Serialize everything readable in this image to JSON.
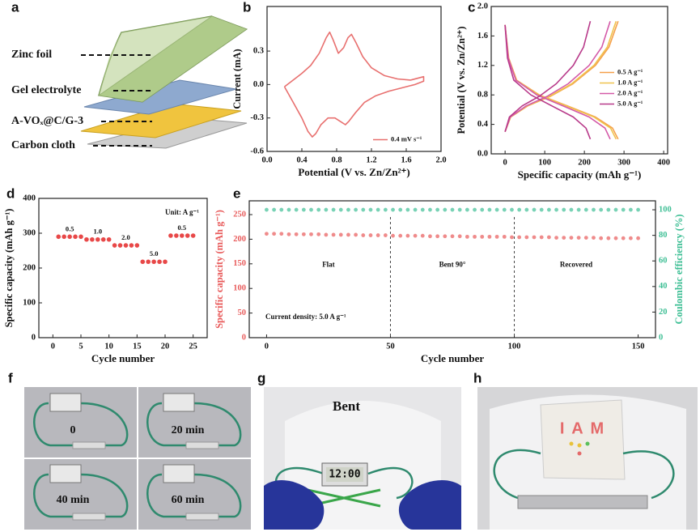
{
  "panel_labels": [
    "a",
    "b",
    "c",
    "d",
    "e",
    "f",
    "g",
    "h"
  ],
  "panel_a": {
    "layers": [
      "Zinc foil",
      "Gel electrolyte",
      "A-VOₓ@C/G-3",
      "Carbon cloth"
    ]
  },
  "chart_data": [
    {
      "type": "line",
      "xlabel": "Potential (V vs. Zn/Zn²⁺)",
      "ylabel": "Current (mA)",
      "xlim": [
        0,
        2.0
      ],
      "xticks": [
        {
          "value": 0,
          "label": "0.0"
        },
        0.4,
        0.8,
        1.2,
        1.6,
        {
          "value": 2.0,
          "label": "2.0"
        }
      ],
      "ylim": [
        -0.6,
        0.7
      ],
      "yticks": [
        -0.6,
        -0.3,
        {
          "value": 0,
          "label": "0.0"
        },
        0.3
      ],
      "legend": "lower right",
      "series": [
        {
          "name": "0.4 mV s⁻¹",
          "color": "#e8706f",
          "x": [
            0.2,
            0.3,
            0.4,
            0.5,
            0.6,
            0.68,
            0.72,
            0.76,
            0.82,
            0.88,
            0.93,
            0.97,
            1.02,
            1.1,
            1.2,
            1.35,
            1.5,
            1.65,
            1.8,
            1.8,
            1.7,
            1.55,
            1.4,
            1.25,
            1.12,
            1.02,
            0.94,
            0.9,
            0.84,
            0.78,
            0.7,
            0.62,
            0.56,
            0.52,
            0.47,
            0.4,
            0.3,
            0.2
          ],
          "values": [
            -0.02,
            0.04,
            0.1,
            0.17,
            0.28,
            0.42,
            0.47,
            0.4,
            0.28,
            0.33,
            0.42,
            0.45,
            0.38,
            0.25,
            0.15,
            0.08,
            0.05,
            0.04,
            0.07,
            0.03,
            0.0,
            -0.03,
            -0.06,
            -0.1,
            -0.16,
            -0.25,
            -0.33,
            -0.36,
            -0.33,
            -0.3,
            -0.3,
            -0.36,
            -0.44,
            -0.47,
            -0.42,
            -0.3,
            -0.16,
            -0.02
          ]
        }
      ]
    },
    {
      "type": "line",
      "xlabel": "Specific capacity (mAh g⁻¹)",
      "ylabel": "Potential (V vs. Zn/Zn²⁺)",
      "xlim": [
        -35,
        410
      ],
      "xticks": [
        0,
        100,
        200,
        300,
        400
      ],
      "ylim": [
        0,
        2.0
      ],
      "yticks": [
        {
          "value": 0,
          "label": "0.0"
        },
        0.4,
        0.8,
        1.2,
        1.6,
        {
          "value": 2.0,
          "label": "2.0"
        }
      ],
      "legend": "center right",
      "series": [
        {
          "name": "0.5 A g⁻¹",
          "color": "#f5a04a",
          "x": [
            0,
            14,
            57,
            114,
            171,
            228,
            262,
            285,
            null,
            0,
            9,
            29,
            86,
            157,
            228,
            271,
            285
          ],
          "values": [
            0.3,
            0.5,
            0.65,
            0.78,
            0.95,
            1.2,
            1.45,
            1.8,
            null,
            1.75,
            1.3,
            1.0,
            0.8,
            0.65,
            0.5,
            0.35,
            0.2
          ]
        },
        {
          "name": "1.0 A g⁻¹",
          "color": "#f0c24e",
          "x": [
            0,
            14,
            56,
            112,
            168,
            224,
            258,
            280,
            null,
            0,
            8,
            28,
            84,
            154,
            224,
            266,
            280
          ],
          "values": [
            0.3,
            0.5,
            0.65,
            0.78,
            0.95,
            1.2,
            1.45,
            1.8,
            null,
            1.75,
            1.3,
            1.0,
            0.8,
            0.65,
            0.5,
            0.35,
            0.2
          ]
        },
        {
          "name": "2.0 A g⁻¹",
          "color": "#d45aa8",
          "x": [
            0,
            13,
            53,
            106,
            159,
            212,
            244,
            265,
            null,
            0,
            8,
            27,
            80,
            146,
            212,
            252,
            265
          ],
          "values": [
            0.3,
            0.5,
            0.65,
            0.78,
            0.95,
            1.2,
            1.45,
            1.8,
            null,
            1.75,
            1.3,
            1.0,
            0.8,
            0.65,
            0.5,
            0.35,
            0.2
          ]
        },
        {
          "name": "5.0 A g⁻¹",
          "color": "#b83a8a",
          "x": [
            0,
            11,
            43,
            86,
            129,
            172,
            198,
            215,
            null,
            0,
            6,
            22,
            65,
            118,
            172,
            204,
            215
          ],
          "values": [
            0.3,
            0.5,
            0.65,
            0.78,
            0.95,
            1.2,
            1.45,
            1.8,
            null,
            1.75,
            1.3,
            1.0,
            0.8,
            0.65,
            0.5,
            0.35,
            0.2
          ]
        }
      ]
    },
    {
      "type": "scatter",
      "xlabel": "Cycle number",
      "ylabel": "Specific capacity (mAh g⁻¹)",
      "xlim": [
        -2.5,
        27.5
      ],
      "xticks": [
        0,
        5,
        10,
        15,
        20,
        25
      ],
      "ylim": [
        0,
        400
      ],
      "yticks": [
        0,
        100,
        200,
        300,
        400
      ],
      "note": "Unit: A g⁻¹",
      "annotations": [
        "0.5",
        "1.0",
        "2.0",
        "5.0",
        "0.5"
      ],
      "x": [
        1,
        2,
        3,
        4,
        5,
        6,
        7,
        8,
        9,
        10,
        11,
        12,
        13,
        14,
        15,
        16,
        17,
        18,
        19,
        20,
        21,
        22,
        23,
        24,
        25
      ],
      "series": [
        {
          "color": "#e84848",
          "values": [
            290,
            290,
            290,
            290,
            290,
            282,
            282,
            282,
            282,
            282,
            265,
            265,
            265,
            265,
            265,
            218,
            218,
            218,
            218,
            218,
            293,
            293,
            293,
            293,
            293
          ]
        }
      ]
    },
    {
      "type": "scatter",
      "xlabel": "Cycle number",
      "ylabel": "Specific capacity (mAh g⁻¹)",
      "y2label": "Coulombic efficiency (%)",
      "xlim": [
        -7,
        157
      ],
      "xticks": [
        0,
        50,
        100,
        150
      ],
      "ylim": [
        0,
        278
      ],
      "yticks": [
        0,
        50,
        100,
        150,
        200,
        250
      ],
      "y2lim": [
        0,
        107
      ],
      "y2ticks": [
        0,
        20,
        40,
        60,
        80,
        100
      ],
      "vlines": [
        50,
        100
      ],
      "annotations": [
        "Flat",
        "Bent 90°",
        "Recovered"
      ],
      "note": "Current density: 5.0 A g⁻¹",
      "x": [
        0,
        3,
        6,
        9,
        12,
        15,
        18,
        21,
        24,
        27,
        30,
        33,
        36,
        39,
        42,
        45,
        48,
        51,
        54,
        57,
        60,
        63,
        66,
        69,
        72,
        75,
        78,
        81,
        84,
        87,
        90,
        93,
        96,
        99,
        102,
        105,
        108,
        111,
        114,
        117,
        120,
        123,
        126,
        129,
        132,
        135,
        138,
        141,
        144,
        147,
        150
      ],
      "series": [
        {
          "color": "#e85a5a",
          "values": [
            211,
            211,
            211,
            210,
            210,
            210,
            210,
            210,
            209,
            209,
            209,
            209,
            209,
            208,
            208,
            208,
            208,
            207,
            207,
            207,
            207,
            207,
            206,
            206,
            206,
            206,
            206,
            205,
            205,
            205,
            205,
            205,
            205,
            204,
            204,
            204,
            204,
            204,
            204,
            203,
            203,
            203,
            203,
            203,
            203,
            202,
            202,
            202,
            202,
            202,
            202
          ]
        },
        {
          "color": "#3fbf95",
          "axis": "y2",
          "values": [
            100,
            100,
            100,
            100,
            100,
            100,
            100,
            100,
            100,
            100,
            100,
            100,
            100,
            100,
            100,
            100,
            100,
            100,
            100,
            100,
            100,
            100,
            100,
            100,
            100,
            100,
            100,
            100,
            100,
            100,
            100,
            100,
            100,
            100,
            100,
            100,
            100,
            100,
            100,
            100,
            100,
            100,
            100,
            100,
            100,
            100,
            100,
            100,
            100,
            100,
            100
          ]
        }
      ]
    }
  ],
  "panel_f": {
    "labels": [
      "0",
      "20 min",
      "40 min",
      "60 min"
    ]
  },
  "panel_g": {
    "label": "Bent",
    "display": "12:00"
  },
  "panel_h": {
    "sign": "I A M"
  }
}
